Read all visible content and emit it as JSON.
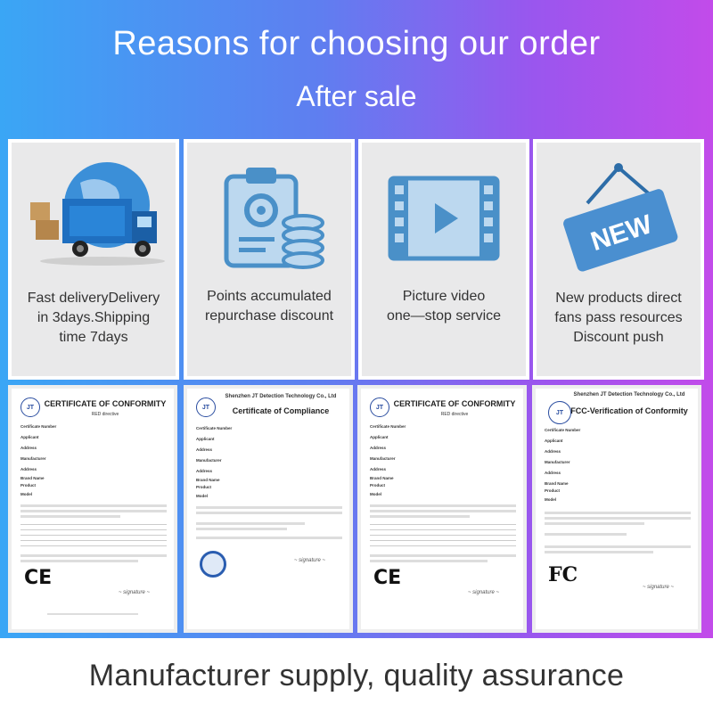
{
  "header": {
    "title": "Reasons for choosing our order",
    "subtitle": "After sale"
  },
  "cards": [
    {
      "lines": [
        "Fast deliveryDelivery",
        "in 3days.Shipping",
        "time 7days"
      ],
      "icon": "delivery-truck-icon"
    },
    {
      "lines": [
        "Points accumulated",
        "repurchase discount"
      ],
      "icon": "clipboard-coins-icon"
    },
    {
      "lines": [
        "Picture video",
        "one—stop service"
      ],
      "icon": "video-film-icon"
    },
    {
      "lines": [
        "New products direct",
        "fans pass resources",
        "Discount push"
      ],
      "icon": "new-sign-icon"
    }
  ],
  "new_sign_text": "NEW",
  "certificates": [
    {
      "org": "",
      "title": "CERTIFICATE OF CONFORMITY",
      "sub": "RED directive",
      "mark": "CE"
    },
    {
      "org": "Shenzhen JT Detection Technology Co., Ltd",
      "title": "Certificate of Compliance",
      "sub": "",
      "mark": ""
    },
    {
      "org": "",
      "title": "CERTIFICATE OF CONFORMITY",
      "sub": "RED directive",
      "mark": "CE"
    },
    {
      "org": "Shenzhen JT Detection Technology Co., Ltd",
      "title": "FCC-Verification of Conformity",
      "sub": "",
      "mark": "FC"
    }
  ],
  "cert_fields": [
    "Certificate Number",
    "Applicant",
    "Address",
    "Manufacturer",
    "Address",
    "Brand Name",
    "Product",
    "Model"
  ],
  "cert_logo": "JT",
  "footer": {
    "text": "Manufacturer supply, quality assurance"
  },
  "colors": {
    "accent_blue": "#4a90c8",
    "truck_blue": "#1f6fc0"
  }
}
